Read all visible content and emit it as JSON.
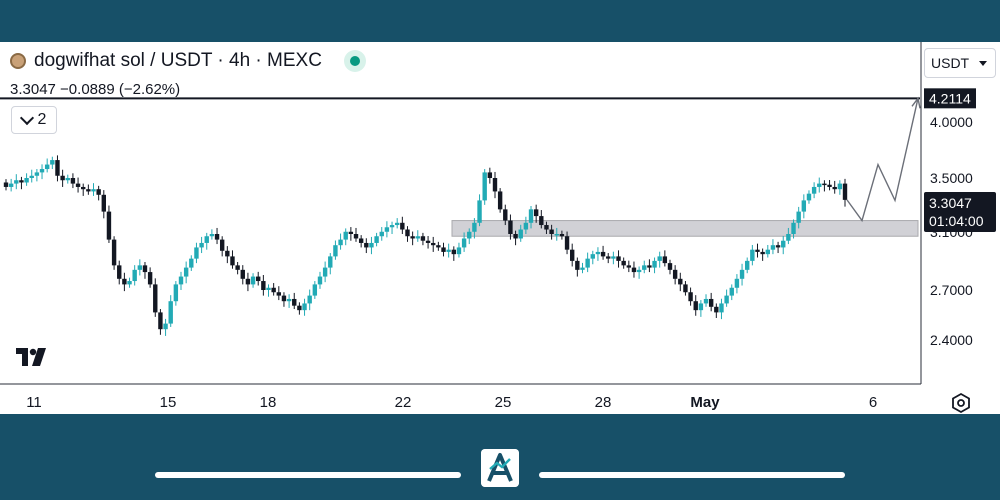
{
  "header": {
    "symbol_title": "dogwifhat sol / USDT · 4h · MEXC",
    "ohlc_line": "3.3047  −0.0889 (−2.62%)",
    "indicator_count": "2",
    "currency": "USDT"
  },
  "price_axis": {
    "labels": [
      "4.0000",
      "3.5000",
      "3.1000",
      "2.7000",
      "2.4000"
    ],
    "resistance_label": "4.2114",
    "current_price_label": "3.3047",
    "countdown_label": "01:04:00"
  },
  "time_axis": {
    "labels": [
      "11",
      "15",
      "18",
      "22",
      "25",
      "28",
      "May",
      "6"
    ]
  },
  "colors": {
    "up": "#22aab5",
    "down": "#131722",
    "zone": "#d1d1d6",
    "frame": "#175068"
  },
  "chart_data": {
    "type": "candlestick",
    "timeframe": "4h",
    "resistance_level": 4.2114,
    "current_price": 3.3047,
    "support_zone": [
      2.98,
      3.12
    ],
    "candles_close": [
      3.42,
      3.45,
      3.48,
      3.46,
      3.5,
      3.52,
      3.55,
      3.58,
      3.62,
      3.66,
      3.52,
      3.48,
      3.5,
      3.45,
      3.42,
      3.4,
      3.38,
      3.4,
      3.35,
      3.2,
      2.95,
      2.72,
      2.6,
      2.55,
      2.58,
      2.68,
      2.72,
      2.66,
      2.55,
      2.3,
      2.15,
      2.2,
      2.4,
      2.55,
      2.62,
      2.7,
      2.78,
      2.88,
      2.92,
      2.98,
      3.0,
      2.95,
      2.85,
      2.8,
      2.72,
      2.68,
      2.6,
      2.55,
      2.62,
      2.58,
      2.5,
      2.52,
      2.48,
      2.45,
      2.4,
      2.42,
      2.36,
      2.32,
      2.38,
      2.45,
      2.55,
      2.62,
      2.7,
      2.8,
      2.9,
      2.95,
      3.02,
      3.0,
      2.96,
      2.92,
      2.88,
      2.92,
      2.98,
      3.02,
      3.06,
      3.08,
      3.1,
      3.04,
      2.98,
      2.96,
      2.98,
      2.94,
      2.92,
      2.9,
      2.88,
      2.84,
      2.86,
      2.82,
      2.88,
      2.96,
      3.02,
      3.1,
      3.3,
      3.55,
      3.5,
      3.38,
      3.22,
      3.12,
      3.0,
      2.96,
      3.04,
      3.1,
      3.22,
      3.16,
      3.08,
      3.04,
      3.0,
      3.0,
      2.98,
      2.86,
      2.76,
      2.68,
      2.7,
      2.78,
      2.82,
      2.84,
      2.8,
      2.78,
      2.8,
      2.76,
      2.72,
      2.7,
      2.66,
      2.68,
      2.72,
      2.7,
      2.76,
      2.8,
      2.74,
      2.68,
      2.6,
      2.55,
      2.48,
      2.4,
      2.32,
      2.38,
      2.42,
      2.35,
      2.3,
      2.38,
      2.45,
      2.52,
      2.6,
      2.68,
      2.76,
      2.86,
      2.84,
      2.82,
      2.86,
      2.9,
      2.88,
      2.94,
      3.0,
      3.1,
      3.2,
      3.3,
      3.36,
      3.42,
      3.45,
      3.44,
      3.42,
      3.4,
      3.45,
      3.3047
    ],
    "projection_path": [
      3.3047,
      3.12,
      3.62,
      3.3,
      4.2114
    ]
  }
}
